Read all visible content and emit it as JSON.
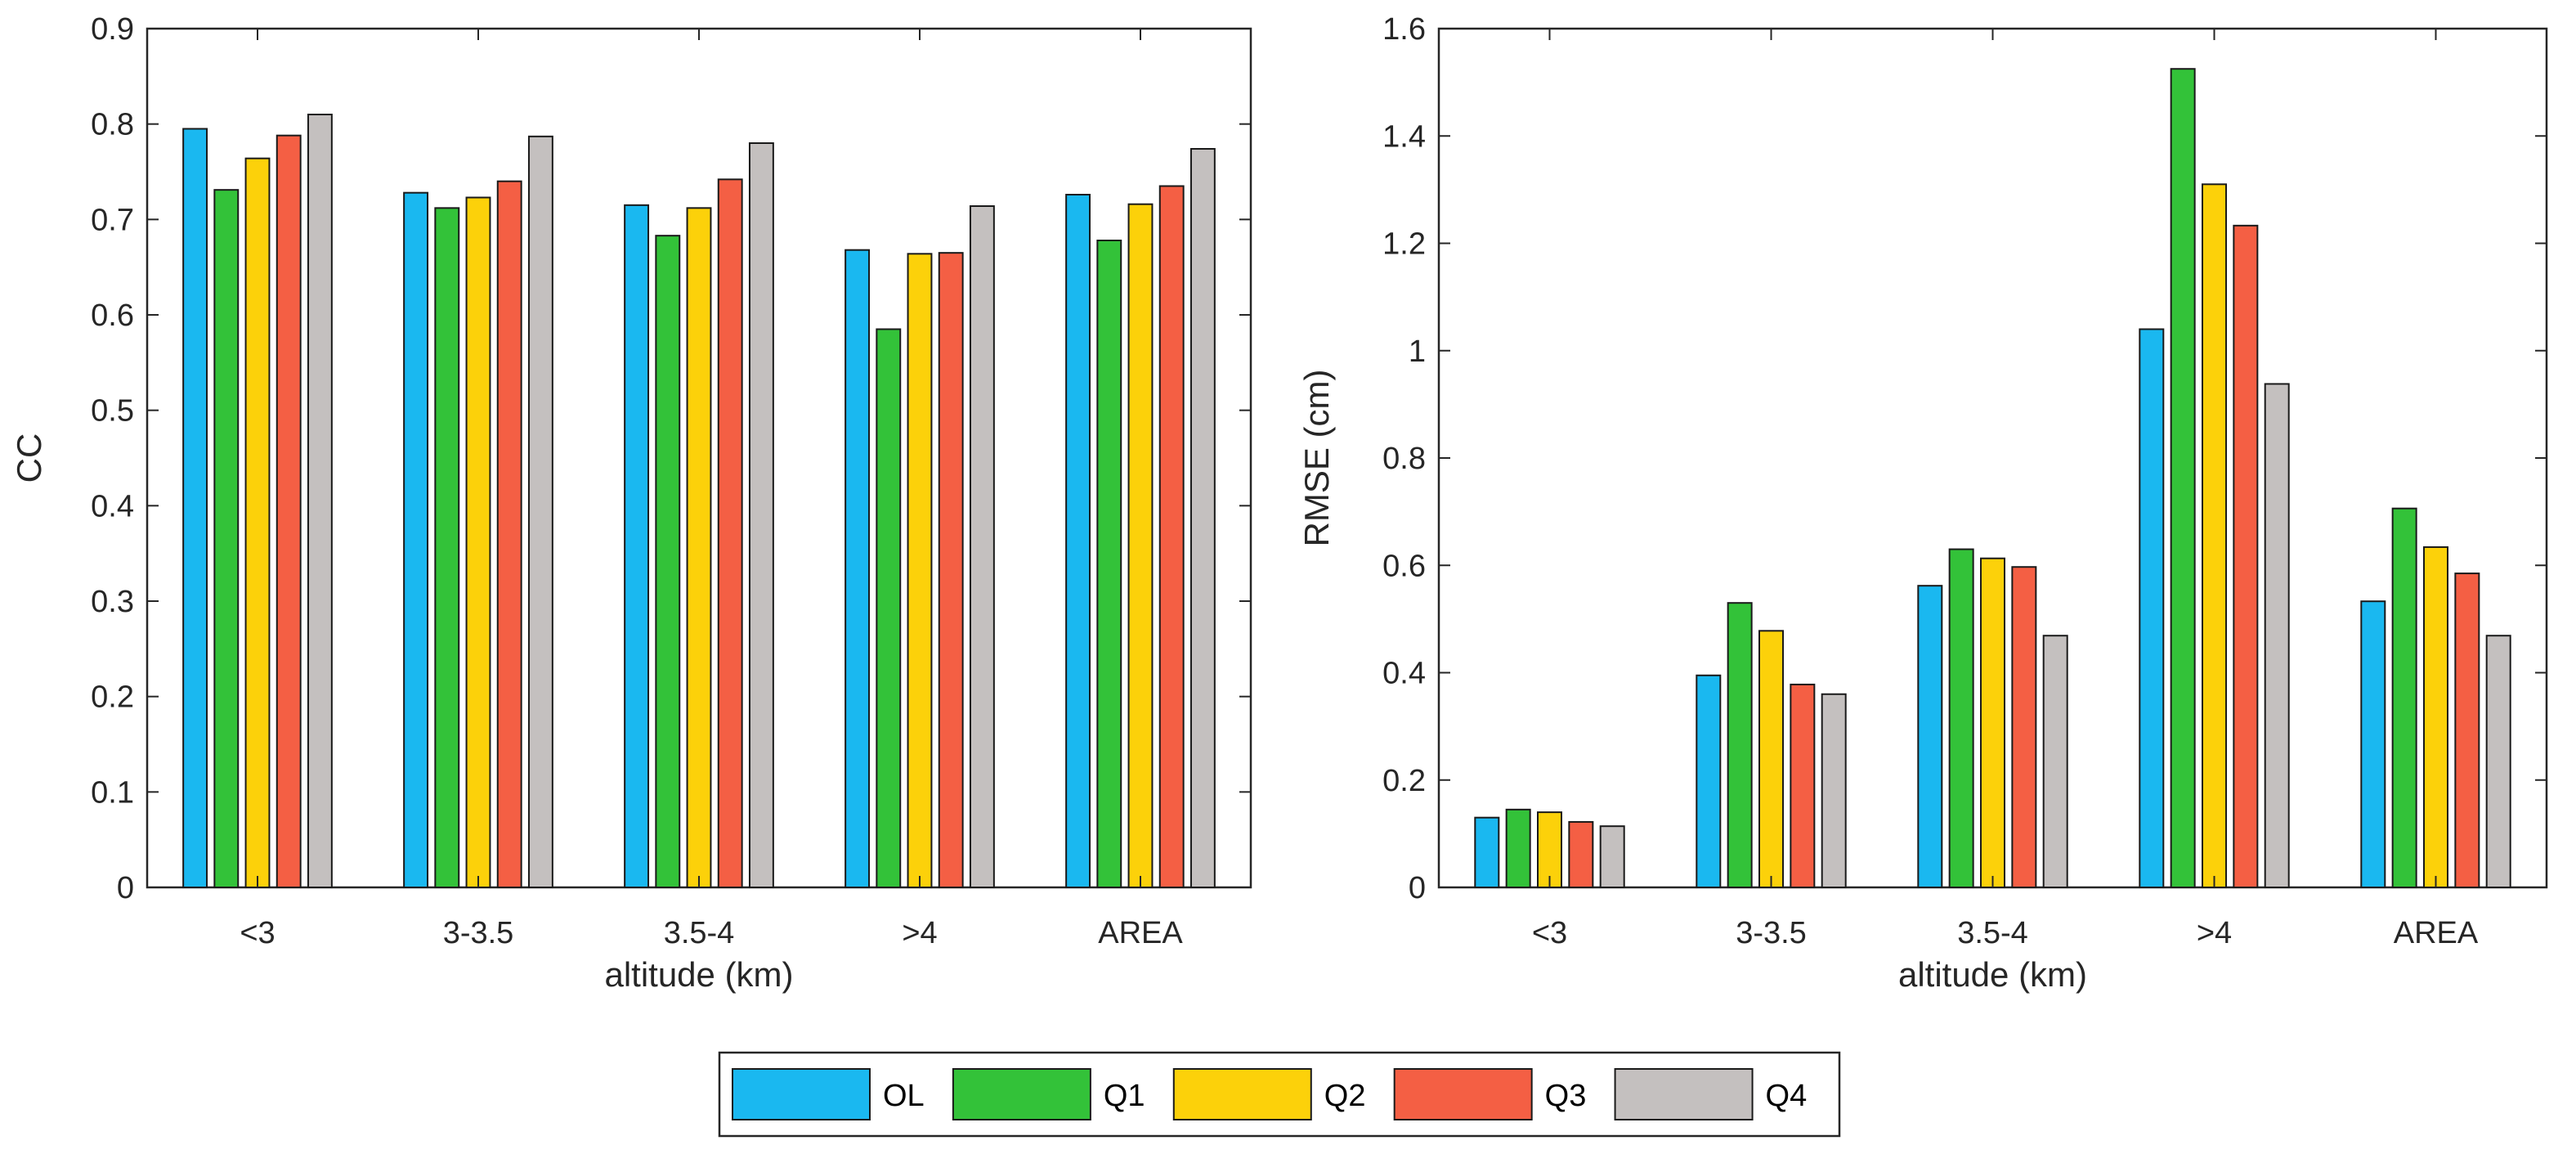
{
  "chart_data": [
    {
      "type": "bar",
      "categories": [
        "<3",
        "3-3.5",
        "3.5-4",
        ">4",
        "AREA"
      ],
      "series": [
        {
          "name": "OL",
          "values": [
            0.795,
            0.728,
            0.715,
            0.668,
            0.726
          ]
        },
        {
          "name": "Q1",
          "values": [
            0.731,
            0.712,
            0.683,
            0.585,
            0.678
          ]
        },
        {
          "name": "Q2",
          "values": [
            0.764,
            0.723,
            0.712,
            0.664,
            0.716
          ]
        },
        {
          "name": "Q3",
          "values": [
            0.788,
            0.74,
            0.742,
            0.665,
            0.735
          ]
        },
        {
          "name": "Q4",
          "values": [
            0.81,
            0.787,
            0.78,
            0.714,
            0.774
          ]
        }
      ],
      "title": "",
      "xlabel": "altitude (km)",
      "ylabel": "CC",
      "ylim": [
        0,
        0.9
      ],
      "yticks": [
        "0",
        "0.1",
        "0.2",
        "0.3",
        "0.4",
        "0.5",
        "0.6",
        "0.7",
        "0.8",
        "0.9"
      ],
      "grid": false
    },
    {
      "type": "bar",
      "categories": [
        "<3",
        "3-3.5",
        "3.5-4",
        ">4",
        "AREA"
      ],
      "series": [
        {
          "name": "OL",
          "values": [
            0.13,
            0.395,
            0.562,
            1.04,
            0.533
          ]
        },
        {
          "name": "Q1",
          "values": [
            0.145,
            0.53,
            0.63,
            1.525,
            0.706
          ]
        },
        {
          "name": "Q2",
          "values": [
            0.14,
            0.478,
            0.613,
            1.31,
            0.634
          ]
        },
        {
          "name": "Q3",
          "values": [
            0.122,
            0.378,
            0.597,
            1.233,
            0.585
          ]
        },
        {
          "name": "Q4",
          "values": [
            0.114,
            0.36,
            0.469,
            0.938,
            0.469
          ]
        }
      ],
      "title": "",
      "xlabel": "altitude (km)",
      "ylabel": "RMSE (cm)",
      "ylim": [
        0,
        1.6
      ],
      "yticks": [
        "0",
        "0.2",
        "0.4",
        "0.6",
        "0.8",
        "1",
        "1.2",
        "1.4",
        "1.6"
      ],
      "grid": false
    }
  ],
  "legend": {
    "placement": "bottom-center",
    "entries": [
      {
        "name": "OL",
        "color": "#1ab8f0"
      },
      {
        "name": "Q1",
        "color": "#33c239"
      },
      {
        "name": "Q2",
        "color": "#fcd10a"
      },
      {
        "name": "Q3",
        "color": "#f45f44"
      },
      {
        "name": "Q4",
        "color": "#c4c0bf"
      }
    ]
  }
}
